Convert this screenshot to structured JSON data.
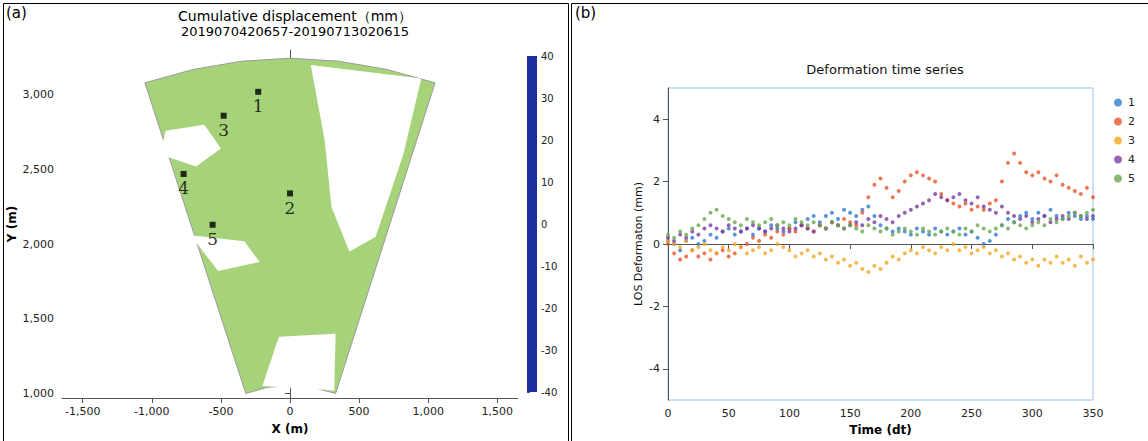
{
  "chart_data": [
    {
      "panel_label": "(a)",
      "type": "map",
      "title": "Cumulative displacement（mm）",
      "subtitle": "2019070420657-20190713020615",
      "x_label": "X (m)",
      "y_label": "Y (m)",
      "xlim": [
        -1650,
        1650
      ],
      "xticks": [
        {
          "value": -1500,
          "label": "-1,500"
        },
        {
          "value": -1000,
          "label": "-1,000"
        },
        -500,
        0,
        500,
        {
          "value": 1000,
          "label": "1,000"
        },
        {
          "value": 1500,
          "label": "1,500"
        }
      ],
      "ylim": [
        970,
        3300
      ],
      "yticks": [
        {
          "value": 1000,
          "label": "1,000"
        },
        {
          "value": 1500,
          "label": "1,500"
        },
        {
          "value": 2000,
          "label": "2,000"
        },
        {
          "value": 2500,
          "label": "2,500"
        },
        {
          "value": 3000,
          "label": "3,000"
        }
      ],
      "coverage": {
        "displacement": 0,
        "outline": [
          [
            -1050,
            3080
          ],
          [
            -700,
            3170
          ],
          [
            -350,
            3225
          ],
          [
            0,
            3245
          ],
          [
            350,
            3225
          ],
          [
            700,
            3170
          ],
          [
            1050,
            3080
          ],
          [
            330,
            1000
          ],
          [
            170,
            1040
          ],
          [
            0,
            1055
          ],
          [
            -170,
            1040
          ],
          [
            -320,
            1000
          ]
        ]
      },
      "no_data_areas": [
        [
          [
            150,
            3200
          ],
          [
            950,
            3110
          ],
          [
            820,
            2600
          ],
          [
            620,
            2050
          ],
          [
            430,
            1950
          ],
          [
            300,
            2250
          ],
          [
            250,
            2700
          ]
        ],
        [
          [
            -900,
            2760
          ],
          [
            -620,
            2800
          ],
          [
            -500,
            2640
          ],
          [
            -680,
            2520
          ],
          [
            -940,
            2600
          ]
        ],
        [
          [
            -720,
            2060
          ],
          [
            -330,
            2020
          ],
          [
            -220,
            1880
          ],
          [
            -520,
            1820
          ]
        ],
        [
          [
            -80,
            1380
          ],
          [
            330,
            1400
          ],
          [
            320,
            1020
          ],
          [
            -200,
            1050
          ]
        ]
      ],
      "marker": "square",
      "points": [
        {
          "name": "1",
          "x": -230,
          "y": 3020
        },
        {
          "name": "2",
          "x": 0,
          "y": 2340
        },
        {
          "name": "3",
          "x": -480,
          "y": 2860
        },
        {
          "name": "4",
          "x": -770,
          "y": 2470
        },
        {
          "name": "5",
          "x": -560,
          "y": 2130
        }
      ],
      "colorbar": {
        "range": [
          -40,
          40
        ],
        "ticks": [
          -40,
          -30,
          -20,
          -10,
          0,
          10,
          20,
          30,
          40
        ],
        "colors": [
          "#1a2f9e",
          "#1e6fd9",
          "#30b0e0",
          "#7fd0c0",
          "#a6d27a",
          "#d8dc50",
          "#f2b838",
          "#ee7a2a",
          "#b3261e"
        ]
      }
    },
    {
      "panel_label": "(b)",
      "type": "scatter",
      "title": "Deformation time series",
      "x_label": "Time (dt)",
      "y_label": "LOS Deformaton (mm)",
      "xlim": [
        0,
        350
      ],
      "xticks": [
        0,
        50,
        100,
        150,
        200,
        250,
        300,
        350
      ],
      "ylim": [
        -5,
        5
      ],
      "yticks": [
        -4,
        -2,
        0,
        2,
        4
      ],
      "legend": "right",
      "marker": "circle",
      "x": [
        0,
        5,
        10,
        15,
        20,
        25,
        30,
        35,
        40,
        45,
        50,
        55,
        60,
        65,
        70,
        75,
        80,
        85,
        90,
        95,
        100,
        105,
        110,
        115,
        120,
        125,
        130,
        135,
        140,
        145,
        150,
        155,
        160,
        165,
        170,
        175,
        180,
        185,
        190,
        195,
        200,
        205,
        210,
        215,
        220,
        225,
        230,
        235,
        240,
        245,
        250,
        255,
        260,
        265,
        270,
        275,
        280,
        285,
        290,
        295,
        300,
        305,
        310,
        315,
        320,
        325,
        330,
        335,
        340,
        345,
        350
      ],
      "series": [
        {
          "name": "1",
          "color": "#2e7bd1",
          "values": [
            0.1,
            0.0,
            -0.2,
            0.1,
            0.2,
            0.0,
            0.1,
            0.3,
            0.2,
            0.4,
            0.5,
            0.3,
            0.4,
            0.5,
            0.3,
            0.5,
            0.4,
            0.6,
            0.5,
            0.4,
            0.5,
            0.7,
            0.6,
            0.8,
            0.9,
            0.7,
            0.9,
            1.0,
            0.8,
            1.1,
            1.0,
            0.9,
            1.1,
            1.2,
            0.9,
            0.6,
            0.5,
            0.4,
            0.5,
            0.4,
            0.3,
            0.5,
            0.4,
            0.3,
            0.5,
            0.4,
            0.3,
            0.4,
            0.5,
            0.3,
            0.4,
            0.2,
            0.0,
            0.1,
            0.3,
            0.6,
            0.8,
            0.7,
            0.9,
            1.0,
            0.8,
            1.0,
            0.9,
            1.1,
            0.9,
            0.8,
            1.0,
            0.9,
            0.8,
            0.9,
            0.8
          ]
        },
        {
          "name": "2",
          "color": "#e8542a",
          "values": [
            0.0,
            -0.3,
            -0.5,
            -0.4,
            -0.2,
            -0.4,
            -0.3,
            -0.5,
            -0.3,
            -0.2,
            -0.4,
            -0.3,
            -0.1,
            0.0,
            0.2,
            0.1,
            0.3,
            0.2,
            0.4,
            0.3,
            0.5,
            0.4,
            0.6,
            0.5,
            0.4,
            0.6,
            0.5,
            0.7,
            0.6,
            0.8,
            0.7,
            0.6,
            1.0,
            1.5,
            1.9,
            2.1,
            1.8,
            1.5,
            1.7,
            2.0,
            2.2,
            2.3,
            2.2,
            2.1,
            2.0,
            1.6,
            1.4,
            1.3,
            1.2,
            1.3,
            1.1,
            1.2,
            1.1,
            1.3,
            1.4,
            2.0,
            2.6,
            2.9,
            2.6,
            2.3,
            2.2,
            2.3,
            2.1,
            2.0,
            2.2,
            1.9,
            1.8,
            1.7,
            1.6,
            1.8,
            1.5
          ]
        },
        {
          "name": "3",
          "color": "#f5a623",
          "values": [
            0.1,
            0.0,
            -0.1,
            0.1,
            -0.2,
            -0.1,
            0.0,
            -0.2,
            -0.3,
            -0.1,
            -0.2,
            0.0,
            -0.1,
            -0.3,
            -0.2,
            -0.1,
            -0.3,
            -0.2,
            0.0,
            -0.1,
            -0.2,
            -0.4,
            -0.3,
            -0.2,
            -0.4,
            -0.3,
            -0.5,
            -0.4,
            -0.6,
            -0.5,
            -0.7,
            -0.6,
            -0.8,
            -0.9,
            -0.7,
            -0.8,
            -0.6,
            -0.4,
            -0.5,
            -0.3,
            -0.2,
            -0.3,
            -0.1,
            -0.2,
            -0.3,
            -0.1,
            -0.2,
            0.0,
            -0.2,
            -0.1,
            -0.3,
            -0.2,
            -0.1,
            -0.3,
            -0.2,
            -0.4,
            -0.3,
            -0.5,
            -0.4,
            -0.6,
            -0.5,
            -0.7,
            -0.5,
            -0.6,
            -0.4,
            -0.6,
            -0.5,
            -0.7,
            -0.4,
            -0.6,
            -0.5
          ]
        },
        {
          "name": "4",
          "color": "#7b3fa0",
          "values": [
            0.2,
            0.1,
            0.3,
            0.2,
            0.4,
            0.3,
            0.5,
            0.6,
            0.5,
            0.4,
            0.6,
            0.5,
            0.4,
            0.5,
            0.6,
            0.5,
            0.4,
            0.5,
            0.6,
            0.5,
            0.4,
            0.5,
            0.6,
            0.5,
            0.4,
            0.6,
            0.5,
            0.7,
            0.6,
            0.5,
            0.6,
            0.7,
            0.6,
            0.8,
            0.7,
            0.9,
            0.8,
            0.7,
            0.9,
            1.0,
            1.1,
            1.2,
            1.3,
            1.4,
            1.6,
            1.5,
            1.4,
            1.5,
            1.6,
            1.4,
            1.3,
            1.5,
            1.2,
            1.1,
            1.0,
            1.2,
            1.0,
            0.9,
            0.8,
            0.9,
            0.7,
            0.8,
            0.9,
            0.7,
            0.8,
            0.9,
            0.8,
            1.0,
            0.9,
            0.8,
            0.9
          ]
        },
        {
          "name": "5",
          "color": "#6aa84f",
          "values": [
            0.3,
            0.2,
            0.4,
            0.3,
            0.5,
            0.6,
            0.8,
            1.0,
            1.1,
            0.9,
            0.8,
            0.7,
            0.6,
            0.8,
            0.7,
            0.6,
            0.7,
            0.8,
            0.6,
            0.7,
            0.6,
            0.8,
            0.7,
            0.6,
            0.7,
            0.6,
            0.5,
            0.7,
            0.6,
            0.5,
            0.6,
            0.5,
            0.4,
            0.6,
            0.5,
            0.4,
            0.5,
            0.3,
            0.4,
            0.5,
            0.4,
            0.3,
            0.5,
            0.4,
            0.3,
            0.4,
            0.5,
            0.4,
            0.3,
            0.5,
            0.4,
            0.6,
            0.5,
            0.4,
            0.5,
            0.6,
            0.5,
            0.7,
            0.6,
            0.5,
            0.6,
            0.7,
            0.6,
            0.8,
            0.7,
            0.8,
            0.9,
            1.0,
            0.9,
            1.0,
            1.1
          ]
        }
      ]
    }
  ]
}
